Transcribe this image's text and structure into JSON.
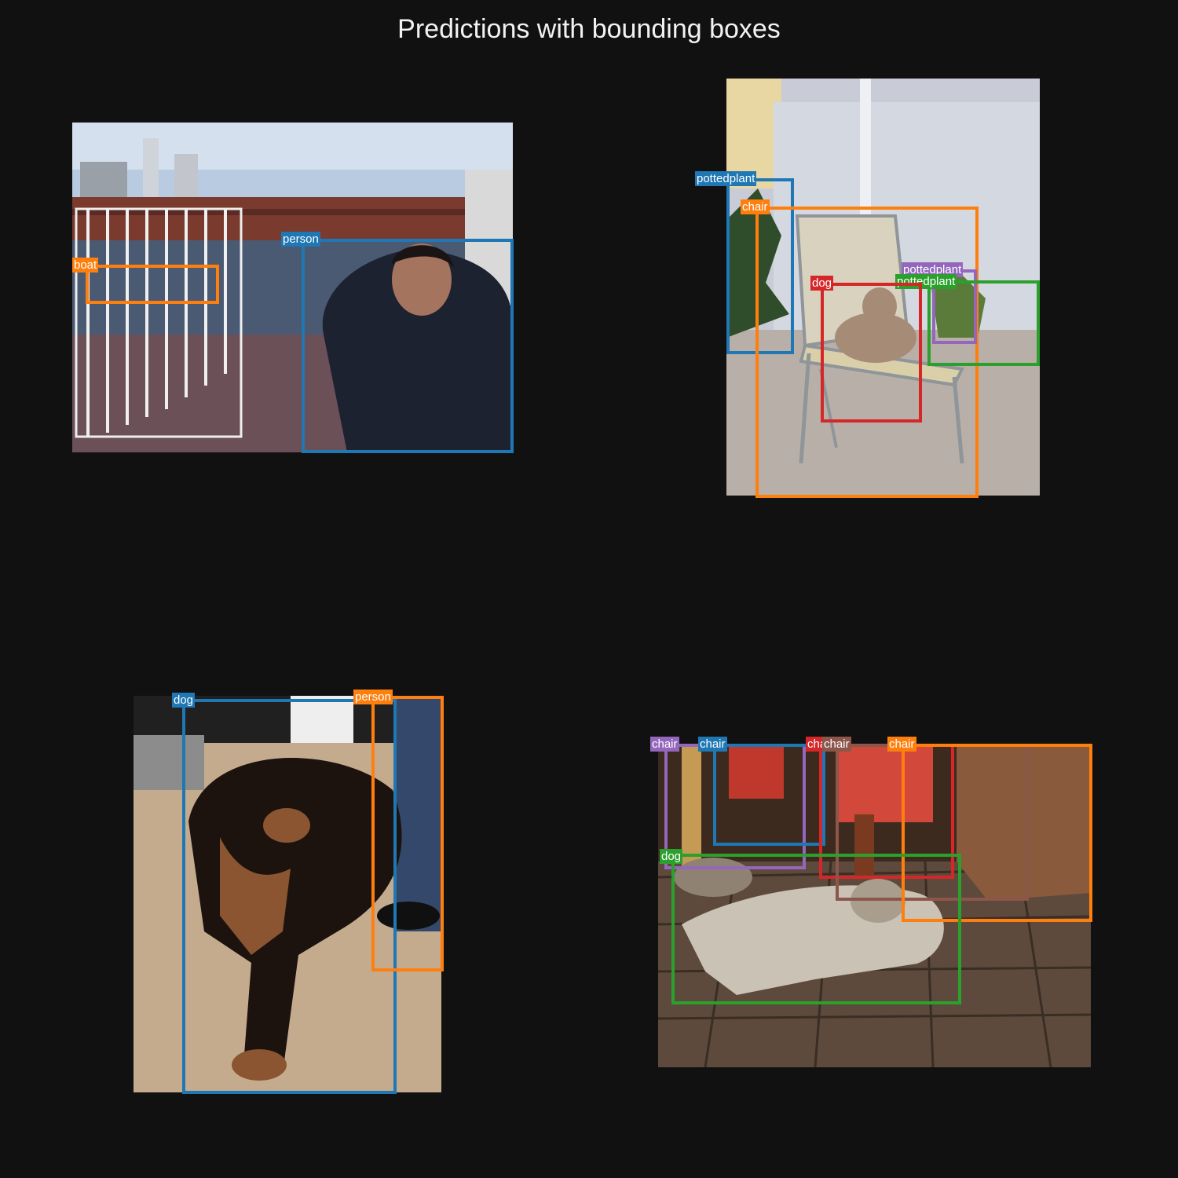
{
  "title": "Predictions with bounding boxes",
  "colors": {
    "background": "#111111",
    "blue": "#1f77b4",
    "orange": "#ff7f0e",
    "green": "#2ca02c",
    "red": "#d62728",
    "purple": "#9467bd",
    "brown": "#8c564b"
  },
  "panels": [
    {
      "scene": "harbor walkway with man on phone",
      "detections": [
        {
          "label": "person",
          "color": "#1f77b4"
        },
        {
          "label": "boat",
          "color": "#ff7f0e"
        }
      ]
    },
    {
      "scene": "small dog on patio chair",
      "detections": [
        {
          "label": "pottedplant",
          "color": "#1f77b4"
        },
        {
          "label": "chair",
          "color": "#ff7f0e"
        },
        {
          "label": "pottedplant",
          "color": "#9467bd"
        },
        {
          "label": "pottedplant",
          "color": "#2ca02c"
        },
        {
          "label": "dog",
          "color": "#d62728"
        }
      ]
    },
    {
      "scene": "dog lying on rug",
      "detections": [
        {
          "label": "dog",
          "color": "#1f77b4"
        },
        {
          "label": "person",
          "color": "#ff7f0e"
        }
      ]
    },
    {
      "scene": "dog lying on wooden deck",
      "detections": [
        {
          "label": "chair",
          "color": "#9467bd"
        },
        {
          "label": "chair",
          "color": "#1f77b4"
        },
        {
          "label": "chair",
          "color": "#d62728"
        },
        {
          "label": "chair",
          "color": "#8c564b"
        },
        {
          "label": "chair",
          "color": "#ff7f0e"
        },
        {
          "label": "dog",
          "color": "#2ca02c"
        }
      ]
    }
  ]
}
